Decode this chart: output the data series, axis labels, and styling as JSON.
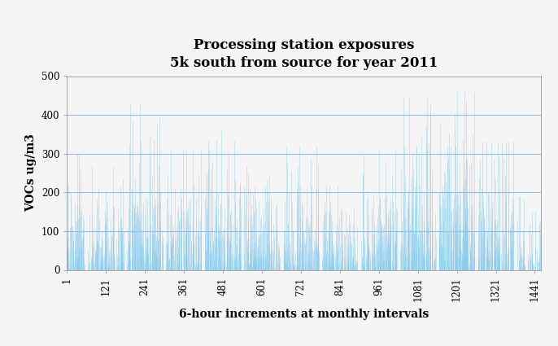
{
  "title_line1": "Processing station exposures",
  "title_line2": "5k south from source for year 2011",
  "xlabel": "6-hour increments at monthly intervals",
  "ylabel": "VOCs ug/m3",
  "ylim": [
    0,
    500
  ],
  "xlim": [
    1,
    1461
  ],
  "yticks": [
    0,
    100,
    200,
    300,
    400,
    500
  ],
  "xticks": [
    1,
    121,
    241,
    361,
    481,
    601,
    721,
    841,
    961,
    1081,
    1201,
    1321,
    1441
  ],
  "grid_color": "#99bbdd",
  "line_color": "#88ccee",
  "bg_color": "#f5f5f5",
  "title_fontsize": 12,
  "axis_label_fontsize": 10,
  "month_centers": [
    1,
    121,
    241,
    361,
    481,
    601,
    721,
    841,
    961,
    1081,
    1201,
    1321,
    1441
  ],
  "month_half_widths": [
    55,
    55,
    55,
    55,
    55,
    55,
    55,
    55,
    55,
    55,
    55,
    55,
    55
  ],
  "spikes_per_month": [
    180,
    160,
    170,
    150,
    165,
    155,
    160,
    145,
    160,
    155,
    200,
    170,
    100
  ],
  "max_heights": [
    300,
    270,
    430,
    310,
    360,
    290,
    320,
    265,
    310,
    445,
    460,
    330,
    190
  ]
}
